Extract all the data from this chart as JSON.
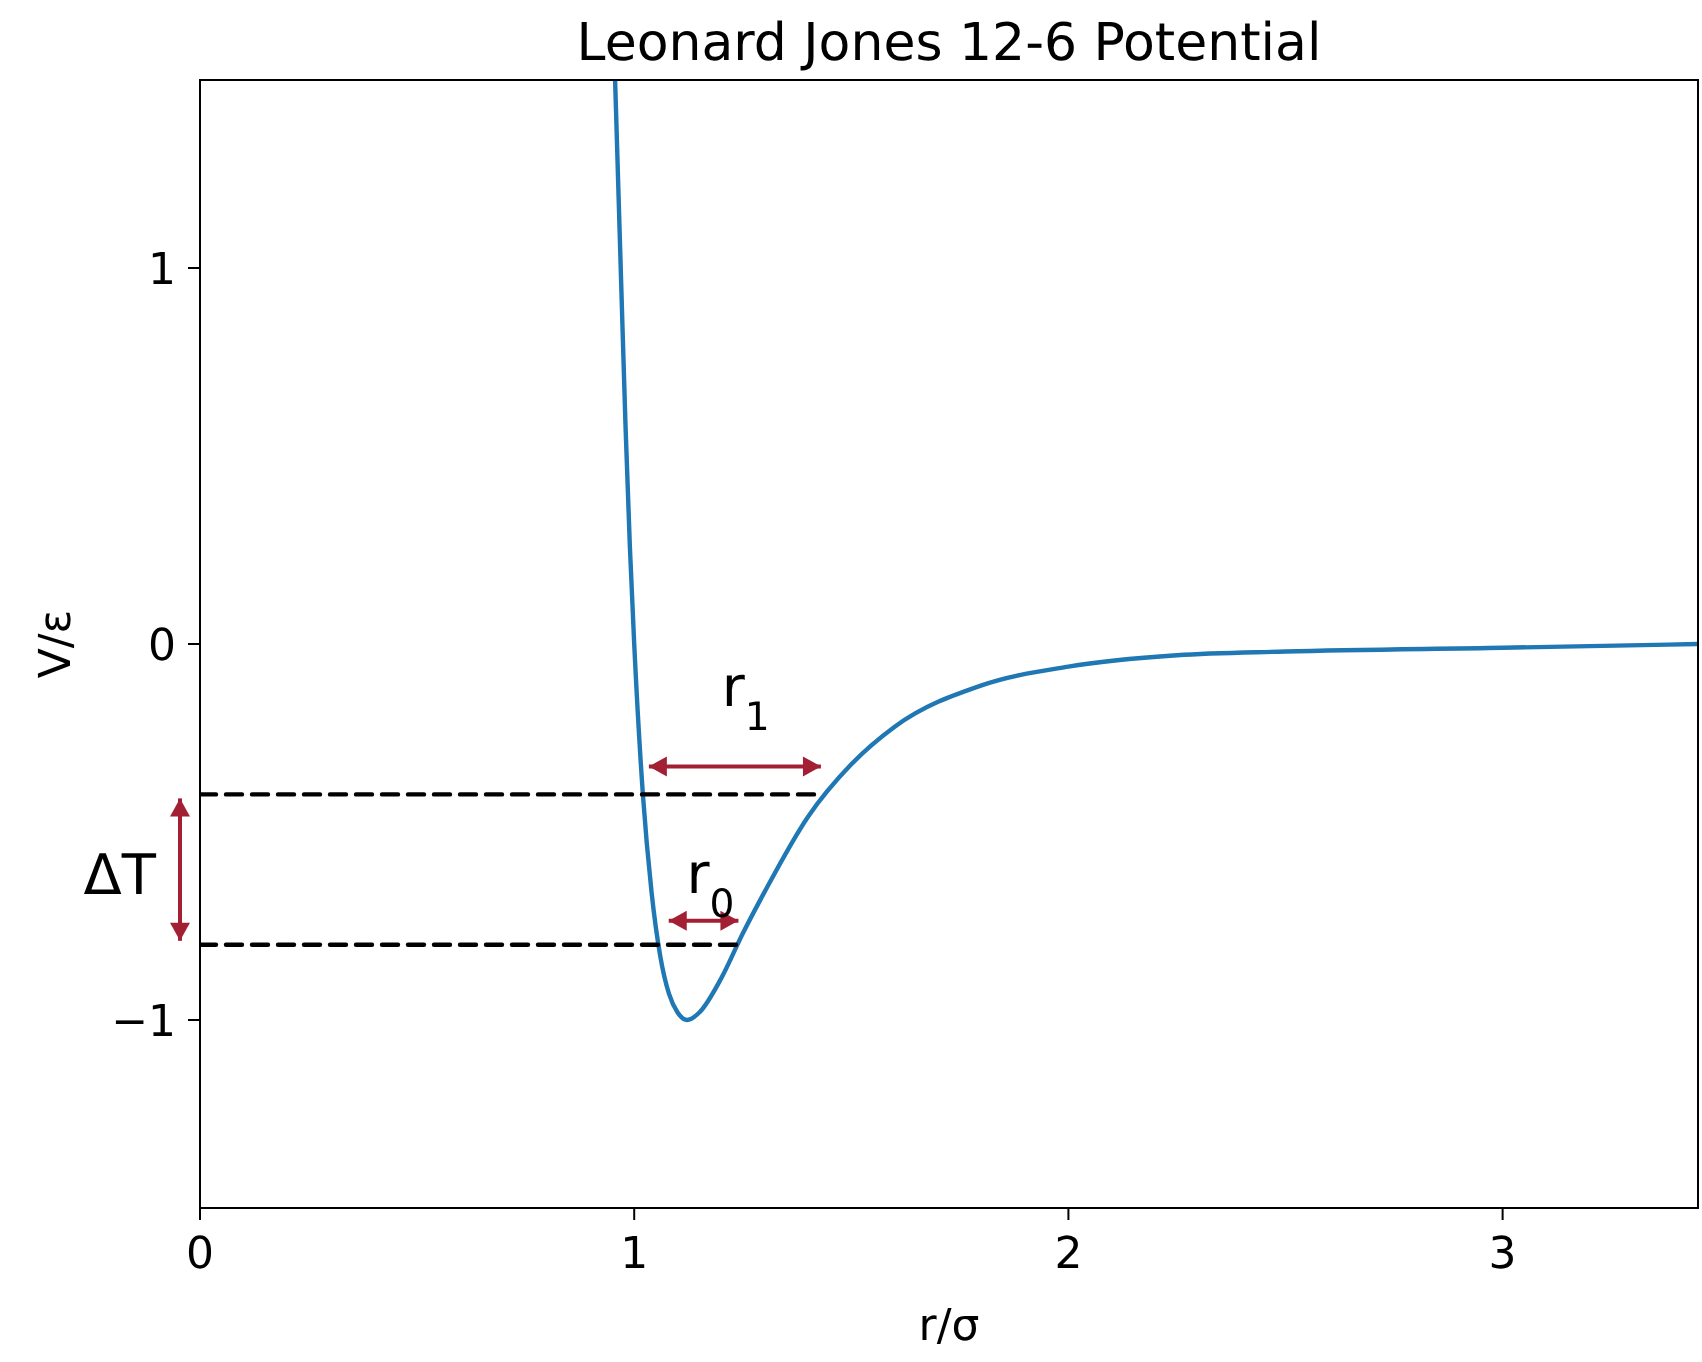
{
  "chart_data": {
    "type": "line",
    "title": "Leonard Jones 12-6 Potential",
    "xlabel": "r/σ",
    "ylabel": "V/ε",
    "xlim": [
      0,
      3.45
    ],
    "ylim": [
      -1.5,
      1.5
    ],
    "xticks": [
      0,
      1,
      2,
      3
    ],
    "yticks": [
      {
        "value": -1,
        "label": "−1"
      },
      0,
      1
    ],
    "series": [
      {
        "color": "#1f77b4",
        "line_style": "solid",
        "x": [
          0.956,
          0.97,
          0.98,
          0.99,
          1.0,
          1.02,
          1.04,
          1.06,
          1.08,
          1.1,
          1.122,
          1.15,
          1.2,
          1.25,
          1.3,
          1.4,
          1.5,
          1.6,
          1.8,
          2.0,
          2.25,
          2.5,
          3.0,
          3.45
        ],
        "values": [
          1.5,
          0.96,
          0.58,
          0.26,
          0,
          -0.4,
          -0.66,
          -0.83,
          -0.93,
          -0.98,
          -1.0,
          -0.98,
          -0.89,
          -0.77,
          -0.66,
          -0.46,
          -0.32,
          -0.22,
          -0.11,
          -0.06,
          -0.03,
          -0.02,
          -0.01,
          0
        ]
      },
      {
        "color": "#000000",
        "line_style": "dashed",
        "x": [
          0,
          1.43
        ],
        "values": [
          -0.4,
          -0.4
        ]
      },
      {
        "color": "#000000",
        "line_style": "dashed",
        "x": [
          0,
          1.24
        ],
        "values": [
          -0.8,
          -0.8
        ]
      }
    ],
    "annotations": [
      {
        "text": "r$_{1}$",
        "x": 1.22,
        "y": -0.4
      },
      "r$_{0}$",
      "ΔT"
    ]
  }
}
